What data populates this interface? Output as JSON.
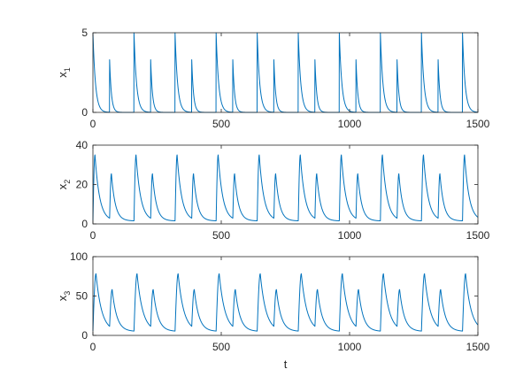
{
  "chart_data": [
    {
      "type": "line",
      "ylabel_main": "x",
      "ylabel_sub": "1",
      "xlabel": "",
      "xlim": [
        0,
        1500
      ],
      "ylim": [
        0,
        5
      ],
      "xticks": [
        0,
        500,
        1000,
        1500
      ],
      "xtick_labels": [
        "0",
        "500",
        "1000",
        "1500"
      ],
      "yticks": [
        0,
        5
      ],
      "ytick_labels": [
        "0",
        "5"
      ],
      "color": "#0072BD",
      "grid": false,
      "period": 160,
      "spikes": [
        {
          "offset": 0,
          "peak": 5.0,
          "decay": 10
        },
        {
          "offset": 65,
          "peak": 3.3,
          "decay": 7
        }
      ],
      "baseline": 0
    },
    {
      "type": "line",
      "ylabel_main": "x",
      "ylabel_sub": "2",
      "xlabel": "",
      "xlim": [
        0,
        1500
      ],
      "ylim": [
        0,
        40
      ],
      "xticks": [
        0,
        500,
        1000,
        1500
      ],
      "xtick_labels": [
        "0",
        "500",
        "1000",
        "1500"
      ],
      "yticks": [
        0,
        20,
        40
      ],
      "ytick_labels": [
        "0",
        "20",
        "40"
      ],
      "color": "#0072BD",
      "grid": false,
      "period": 160,
      "pulses": [
        {
          "offset": 0,
          "peak": 35,
          "rise": 8,
          "decay": 18
        },
        {
          "offset": 65,
          "peak": 24.5,
          "rise": 7,
          "decay": 15
        }
      ],
      "baseline": 1.5
    },
    {
      "type": "line",
      "ylabel_main": "x",
      "ylabel_sub": "3",
      "xlabel": "t",
      "xlim": [
        0,
        1500
      ],
      "ylim": [
        0,
        100
      ],
      "xticks": [
        0,
        500,
        1000,
        1500
      ],
      "xtick_labels": [
        "0",
        "500",
        "1000",
        "1500"
      ],
      "yticks": [
        0,
        50,
        100
      ],
      "ytick_labels": [
        "0",
        "50",
        "100"
      ],
      "color": "#0072BD",
      "grid": false,
      "period": 160,
      "pulses": [
        {
          "offset": 0,
          "peak": 78,
          "rise": 12,
          "decay": 22
        },
        {
          "offset": 65,
          "peak": 54,
          "rise": 10,
          "decay": 18
        }
      ],
      "baseline": 5
    }
  ]
}
